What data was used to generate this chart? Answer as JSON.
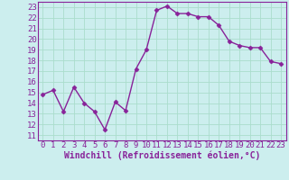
{
  "x": [
    0,
    1,
    2,
    3,
    4,
    5,
    6,
    7,
    8,
    9,
    10,
    11,
    12,
    13,
    14,
    15,
    16,
    17,
    18,
    19,
    20,
    21,
    22,
    23
  ],
  "y": [
    14.8,
    15.2,
    13.2,
    15.5,
    14.0,
    13.2,
    11.5,
    14.1,
    13.3,
    17.2,
    19.0,
    22.7,
    23.1,
    22.4,
    22.4,
    22.1,
    22.1,
    21.3,
    19.8,
    19.4,
    19.2,
    19.2,
    17.9,
    17.7
  ],
  "line_color": "#882299",
  "marker": "D",
  "marker_size": 2.5,
  "bg_color": "#cceeee",
  "grid_color": "#aaddcc",
  "ylabel_ticks": [
    11,
    12,
    13,
    14,
    15,
    16,
    17,
    18,
    19,
    20,
    21,
    22,
    23
  ],
  "xlabel": "Windchill (Refroidissement éolien,°C)",
  "ylim": [
    10.5,
    23.5
  ],
  "xlim": [
    -0.5,
    23.5
  ],
  "xlabel_fontsize": 7,
  "tick_fontsize": 6.5,
  "line_width": 1.0
}
